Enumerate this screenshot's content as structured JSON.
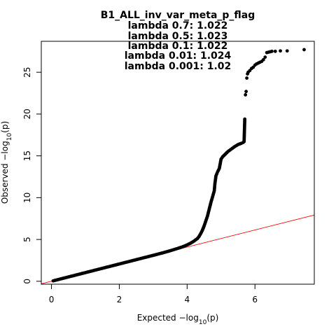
{
  "chart_data": {
    "type": "scatter",
    "title": "B1_ALL_inv_var_meta_p_flag",
    "subtitle_lines": [
      "lambda 0.7: 1.022",
      "lambda 0.5: 1.023",
      "lambda 0.1: 1.022",
      "lambda 0.01: 1.024",
      "lambda 0.001: 1.02"
    ],
    "xlabel": {
      "prefix": "Expected  ",
      "main": "−log",
      "sub": "10",
      "suffix": "(p)"
    },
    "ylabel": {
      "prefix": "Observed  ",
      "main": "−log",
      "sub": "10",
      "suffix": "(p)"
    },
    "xlim": [
      -0.3,
      7.75
    ],
    "ylim": [
      -0.35,
      28.7
    ],
    "x_ticks": [
      0,
      2,
      4,
      6
    ],
    "x_tick_labels": [
      "0",
      "2",
      "4",
      "6"
    ],
    "y_ticks": [
      0,
      5,
      10,
      15,
      20,
      25
    ],
    "y_tick_labels": [
      "0",
      "5",
      "10",
      "15",
      "20",
      "25"
    ],
    "grid": false,
    "reference_line": {
      "slope": 1.022,
      "intercept": 0,
      "color": "#ff0000"
    },
    "point_color": "#000000",
    "series": [
      {
        "x": [
          0.05,
          0.3,
          0.6,
          0.9,
          1.2,
          1.5,
          1.8,
          2.1,
          2.4,
          2.7,
          3.0,
          3.3,
          3.5,
          3.7,
          3.85,
          4.0,
          4.1,
          4.2,
          4.3,
          4.35,
          4.4,
          4.45,
          4.5,
          4.55,
          4.6,
          4.65,
          4.7,
          4.75,
          4.8,
          4.82,
          4.85,
          4.88,
          4.9,
          4.95,
          5.0,
          5.05,
          5.1,
          5.15,
          5.2,
          5.3,
          5.4,
          5.5,
          5.6,
          5.65,
          5.68,
          5.7,
          5.72,
          5.74,
          5.76,
          5.78,
          5.8,
          5.85,
          5.9,
          5.95,
          6.0,
          6.05,
          6.1,
          6.15,
          6.2,
          6.25,
          6.3,
          6.35,
          6.4,
          6.45,
          6.5,
          6.6,
          6.75,
          6.95,
          7.45
        ],
        "y": [
          0.05,
          0.31,
          0.62,
          0.93,
          1.24,
          1.55,
          1.86,
          2.17,
          2.48,
          2.79,
          3.1,
          3.42,
          3.65,
          3.9,
          4.1,
          4.35,
          4.55,
          4.8,
          5.1,
          5.35,
          5.7,
          6.1,
          6.6,
          7.2,
          7.8,
          8.6,
          9.4,
          10.1,
          10.8,
          11.7,
          12.6,
          12.9,
          13.1,
          13.5,
          14.6,
          14.9,
          15.1,
          15.3,
          15.5,
          15.8,
          16.1,
          16.35,
          16.5,
          16.6,
          16.7,
          19.4,
          22.3,
          22.7,
          24.3,
          24.8,
          25.0,
          25.2,
          25.45,
          25.6,
          25.85,
          26.0,
          26.1,
          26.2,
          26.3,
          26.5,
          26.8,
          27.35,
          27.4,
          27.45,
          27.5,
          27.5,
          27.55,
          27.55,
          27.7
        ]
      }
    ]
  }
}
